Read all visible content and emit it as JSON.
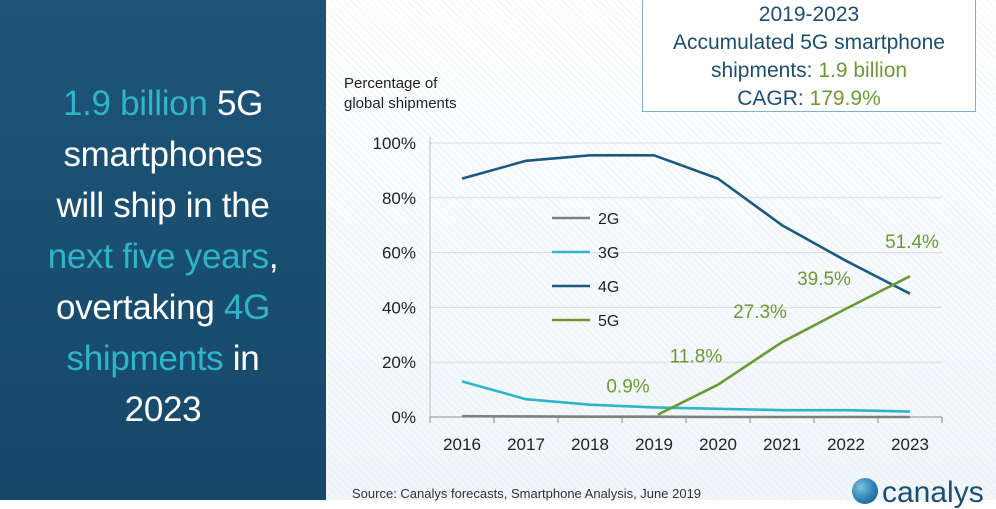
{
  "headline": {
    "line1_hl": "1.9 billion",
    "line1_rest": " 5G",
    "line2": "smartphones",
    "line3": "will ship in the",
    "line4_hl": "next five years",
    "line4_rest": ",",
    "line5_rest": "overtaking ",
    "line5_hl": "4G",
    "line6_hl": "shipments",
    "line6_rest": " in",
    "line7": "2023"
  },
  "callout": {
    "line1": "2019-2023",
    "line2": "Accumulated 5G smartphone",
    "line3_label": "shipments: ",
    "line3_value": "1.9 billion",
    "line4_label": "CAGR: ",
    "line4_value": "179.9%"
  },
  "source": "Source: Canalys forecasts, Smartphone Analysis, June 2019",
  "logo": "canalys",
  "colors": {
    "2G": "#7f7f7f",
    "3G": "#2fb5c9",
    "4G": "#1b5a80",
    "5G": "#6b9a35"
  },
  "chart_data": {
    "type": "line",
    "ylabel_line1": "Percentage of",
    "ylabel_line2": "global shipments",
    "x": [
      "2016",
      "2017",
      "2018",
      "2019",
      "2020",
      "2021",
      "2022",
      "2023"
    ],
    "y_ticks": [
      "0%",
      "20%",
      "40%",
      "60%",
      "80%",
      "100%"
    ],
    "ylim": [
      0,
      100
    ],
    "legend_position": "center-left",
    "series": [
      {
        "name": "2G",
        "values": [
          0.3,
          0.2,
          0.1,
          0.1,
          0,
          0,
          0,
          0
        ]
      },
      {
        "name": "3G",
        "values": [
          13,
          6.5,
          4.5,
          3.5,
          3,
          2.5,
          2.5,
          2
        ]
      },
      {
        "name": "4G",
        "values": [
          87,
          93.5,
          95.5,
          95.5,
          87,
          70,
          57,
          45
        ]
      },
      {
        "name": "5G",
        "values": [
          null,
          null,
          null,
          0.9,
          11.8,
          27.3,
          39.5,
          51.4
        ]
      }
    ],
    "data_labels": [
      {
        "text": "0.9%",
        "x_index": 3,
        "value": 0.9
      },
      {
        "text": "11.8%",
        "x_index": 4,
        "value": 11.8
      },
      {
        "text": "27.3%",
        "x_index": 5,
        "value": 27.3
      },
      {
        "text": "39.5%",
        "x_index": 6,
        "value": 39.5
      },
      {
        "text": "51.4%",
        "x_index": 7,
        "value": 51.4
      }
    ]
  }
}
